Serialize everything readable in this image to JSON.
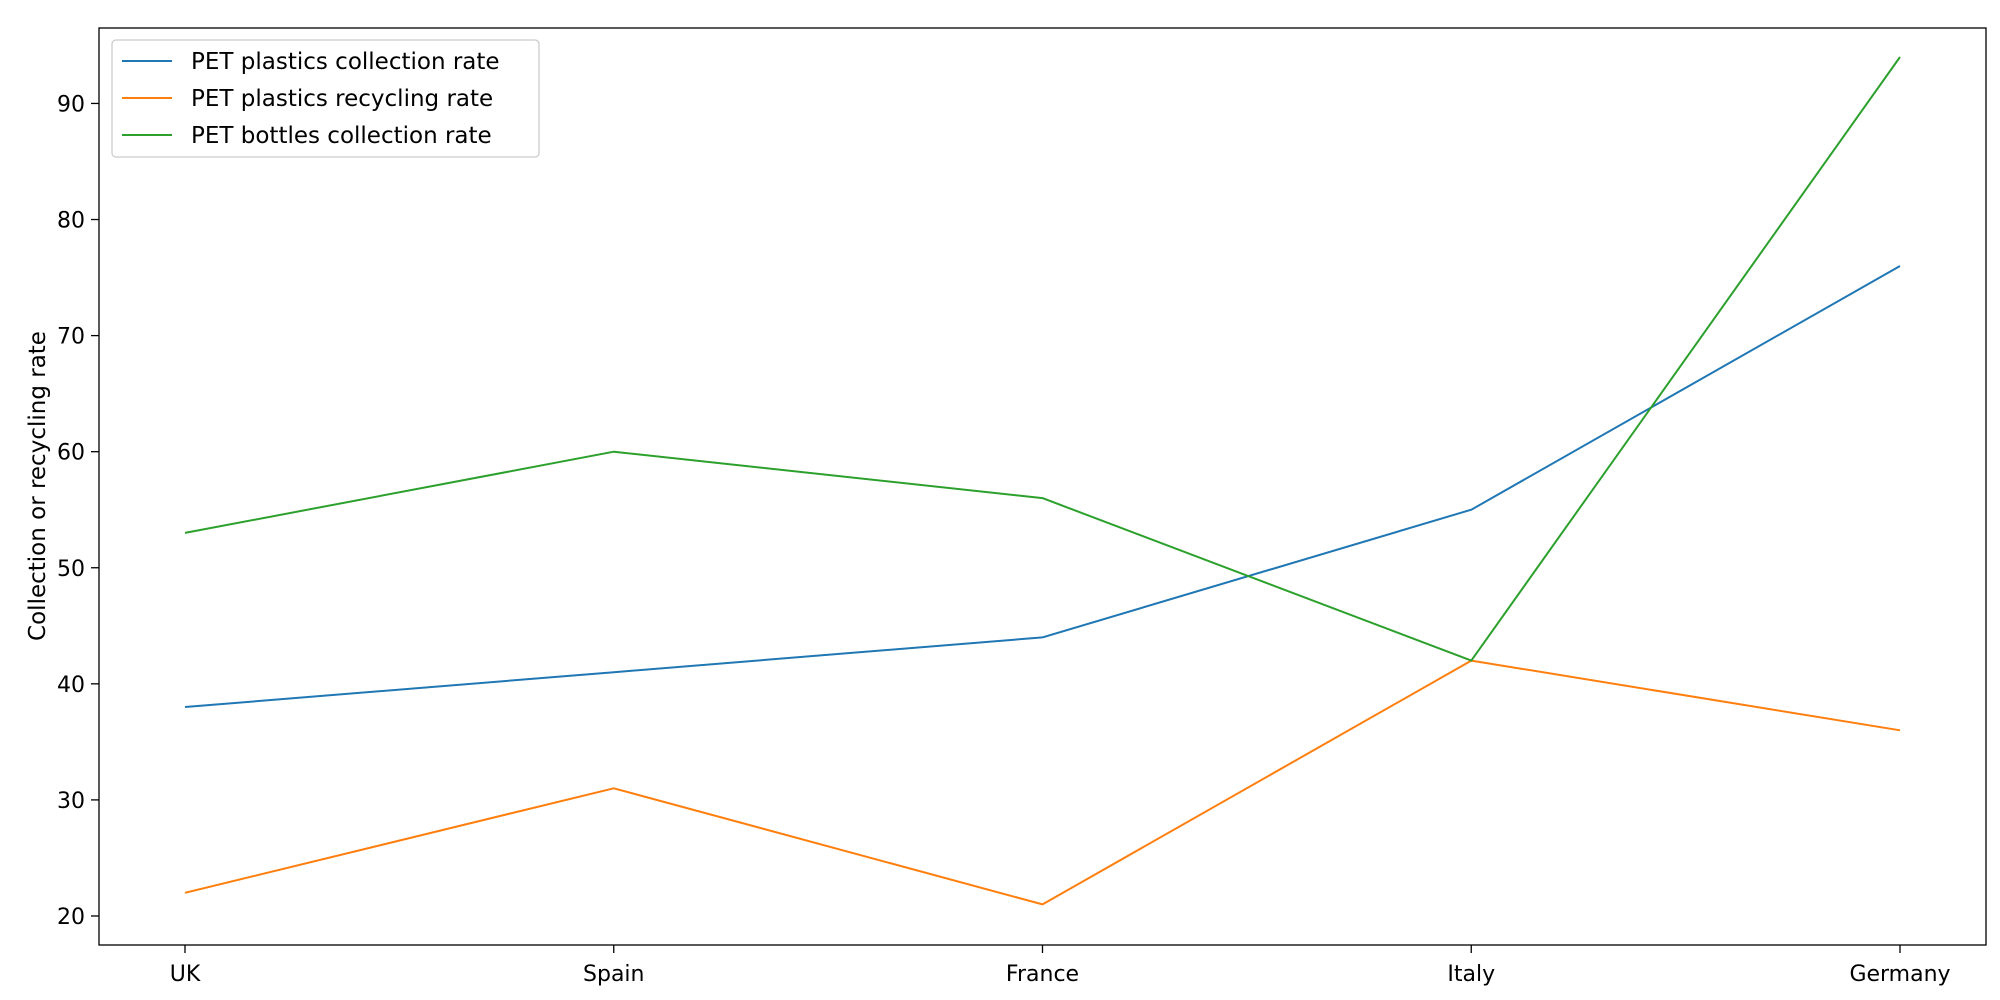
{
  "chart_data": {
    "type": "line",
    "title": "",
    "xlabel": "",
    "ylabel": "Collection or recycling rate",
    "categories": [
      "UK",
      "Spain",
      "France",
      "Italy",
      "Germany"
    ],
    "ylim": [
      17.5,
      96.5
    ],
    "yticks": [
      20,
      30,
      40,
      50,
      60,
      70,
      80,
      90
    ],
    "grid": false,
    "legend_position": "upper-left",
    "series": [
      {
        "name": "PET plastics collection rate",
        "color": "#1f77b4",
        "values": [
          38,
          41,
          44,
          55,
          76
        ]
      },
      {
        "name": "PET plastics recycling rate",
        "color": "#ff7f0e",
        "values": [
          22,
          31,
          21,
          42,
          36
        ]
      },
      {
        "name": "PET bottles collection rate",
        "color": "#2ca02c",
        "values": [
          53,
          60,
          56,
          42,
          94
        ]
      }
    ]
  }
}
